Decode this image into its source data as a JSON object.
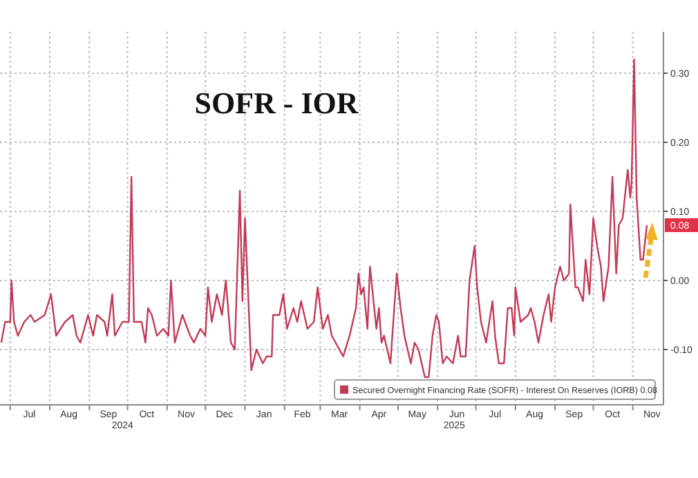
{
  "chart_data": {
    "type": "line",
    "title": "SOFR - IOR",
    "x": [
      "2024-06-24",
      "2024-06-27",
      "2024-07-01",
      "2024-07-02",
      "2024-07-04",
      "2024-07-07",
      "2024-07-12",
      "2024-07-17",
      "2024-07-20",
      "2024-07-28",
      "2024-08-02",
      "2024-08-06",
      "2024-08-13",
      "2024-08-19",
      "2024-08-22",
      "2024-08-25",
      "2024-08-31",
      "2024-09-04",
      "2024-09-07",
      "2024-09-13",
      "2024-09-15",
      "2024-09-19",
      "2024-09-21",
      "2024-09-27",
      "2024-10-02",
      "2024-10-04",
      "2024-10-06",
      "2024-10-12",
      "2024-10-15",
      "2024-10-17",
      "2024-10-20",
      "2024-10-24",
      "2024-10-29",
      "2024-11-02",
      "2024-11-04",
      "2024-11-07",
      "2024-11-13",
      "2024-11-19",
      "2024-11-22",
      "2024-11-27",
      "2024-12-01",
      "2024-12-03",
      "2024-12-06",
      "2024-12-10",
      "2024-12-14",
      "2024-12-17",
      "2024-12-21",
      "2024-12-24",
      "2024-12-28",
      "2024-12-30",
      "2025-01-01",
      "2025-01-06",
      "2025-01-10",
      "2025-01-15",
      "2025-01-18",
      "2025-01-22",
      "2025-01-23",
      "2025-01-28",
      "2025-01-31",
      "2025-02-03",
      "2025-02-08",
      "2025-02-11",
      "2025-02-14",
      "2025-02-19",
      "2025-02-24",
      "2025-02-27",
      "2025-03-03",
      "2025-03-07",
      "2025-03-10",
      "2025-03-16",
      "2025-03-19",
      "2025-03-24",
      "2025-03-29",
      "2025-03-31",
      "2025-04-02",
      "2025-04-04",
      "2025-04-07",
      "2025-04-09",
      "2025-04-14",
      "2025-04-16",
      "2025-04-18",
      "2025-04-20",
      "2025-04-25",
      "2025-04-28",
      "2025-04-30",
      "2025-05-03",
      "2025-05-06",
      "2025-05-11",
      "2025-05-14",
      "2025-05-17",
      "2025-05-22",
      "2025-05-25",
      "2025-05-28",
      "2025-05-31",
      "2025-06-02",
      "2025-06-05",
      "2025-06-08",
      "2025-06-13",
      "2025-06-17",
      "2025-06-19",
      "2025-06-23",
      "2025-06-26",
      "2025-06-30",
      "2025-07-02",
      "2025-07-05",
      "2025-07-09",
      "2025-07-14",
      "2025-07-16",
      "2025-07-19",
      "2025-07-23",
      "2025-07-26",
      "2025-07-29",
      "2025-07-31",
      "2025-08-01",
      "2025-08-05",
      "2025-08-11",
      "2025-08-13",
      "2025-08-16",
      "2025-08-19",
      "2025-08-23",
      "2025-08-27",
      "2025-08-29",
      "2025-09-01",
      "2025-09-05",
      "2025-09-08",
      "2025-09-12",
      "2025-09-13",
      "2025-09-17",
      "2025-09-19",
      "2025-09-23",
      "2025-09-25",
      "2025-09-28",
      "2025-10-01",
      "2025-10-04",
      "2025-10-07",
      "2025-10-09",
      "2025-10-13",
      "2025-10-16",
      "2025-10-19",
      "2025-10-21",
      "2025-10-24",
      "2025-10-28",
      "2025-10-30",
      "2025-10-31",
      "2025-11-02",
      "2025-11-04",
      "2025-11-07",
      "2025-11-09",
      "2025-11-12"
    ],
    "series": [
      {
        "name": "Secured Overnight Financing Rate (SOFR) - Interest On Reserves (IORB)",
        "color": "#c23a55",
        "values": [
          -0.09,
          -0.06,
          -0.06,
          0.0,
          -0.06,
          -0.08,
          -0.06,
          -0.05,
          -0.06,
          -0.05,
          -0.02,
          -0.08,
          -0.06,
          -0.05,
          -0.08,
          -0.09,
          -0.05,
          -0.08,
          -0.05,
          -0.06,
          -0.08,
          -0.02,
          -0.08,
          -0.06,
          -0.06,
          0.15,
          -0.06,
          -0.06,
          -0.09,
          -0.04,
          -0.05,
          -0.08,
          -0.07,
          -0.08,
          0.0,
          -0.09,
          -0.05,
          -0.08,
          -0.09,
          -0.07,
          -0.08,
          -0.01,
          -0.06,
          -0.02,
          -0.05,
          0.0,
          -0.09,
          -0.1,
          0.13,
          -0.03,
          0.09,
          -0.13,
          -0.1,
          -0.12,
          -0.11,
          -0.11,
          -0.05,
          -0.05,
          -0.02,
          -0.07,
          -0.04,
          -0.06,
          -0.03,
          -0.07,
          -0.06,
          -0.01,
          -0.07,
          -0.05,
          -0.08,
          -0.1,
          -0.11,
          -0.08,
          -0.04,
          0.01,
          -0.02,
          -0.01,
          -0.07,
          0.02,
          -0.07,
          -0.04,
          -0.09,
          -0.08,
          -0.12,
          -0.04,
          0.01,
          -0.04,
          -0.08,
          -0.12,
          -0.09,
          -0.1,
          -0.14,
          -0.14,
          -0.08,
          -0.05,
          -0.06,
          -0.12,
          -0.11,
          -0.12,
          -0.08,
          -0.11,
          -0.11,
          0.0,
          0.05,
          -0.01,
          -0.06,
          -0.09,
          -0.03,
          -0.08,
          -0.12,
          -0.12,
          -0.04,
          -0.04,
          -0.08,
          -0.01,
          -0.06,
          -0.05,
          -0.04,
          -0.06,
          -0.09,
          -0.05,
          -0.02,
          -0.06,
          -0.01,
          0.02,
          0.0,
          0.01,
          0.11,
          -0.01,
          -0.01,
          -0.03,
          0.03,
          -0.02,
          0.09,
          0.05,
          0.02,
          -0.03,
          0.02,
          0.15,
          0.01,
          0.08,
          0.09,
          0.16,
          0.12,
          0.14,
          0.32,
          0.12,
          0.03,
          0.03,
          0.08
        ]
      }
    ],
    "xlim": [
      "2024-06-23",
      "2025-11-25"
    ],
    "xticks": [
      {
        "value": "2024-07-01",
        "label": null
      },
      {
        "value": "2024-07-16",
        "label": "Jul"
      },
      {
        "value": "2024-08-01",
        "label": null
      },
      {
        "value": "2024-08-16",
        "label": "Aug"
      },
      {
        "value": "2024-09-01",
        "label": null
      },
      {
        "value": "2024-09-16",
        "label": "Sep"
      },
      {
        "value": "2024-10-01",
        "label": null
      },
      {
        "value": "2024-10-16",
        "label": "Oct"
      },
      {
        "value": "2024-11-01",
        "label": null
      },
      {
        "value": "2024-11-16",
        "label": "Nov"
      },
      {
        "value": "2024-12-01",
        "label": null
      },
      {
        "value": "2024-12-16",
        "label": "Dec"
      },
      {
        "value": "2025-01-01",
        "label": null
      },
      {
        "value": "2025-01-16",
        "label": "Jan"
      },
      {
        "value": "2025-02-01",
        "label": null
      },
      {
        "value": "2025-02-15",
        "label": "Feb"
      },
      {
        "value": "2025-03-01",
        "label": null
      },
      {
        "value": "2025-03-16",
        "label": "Mar"
      },
      {
        "value": "2025-04-01",
        "label": null
      },
      {
        "value": "2025-04-16",
        "label": "Apr"
      },
      {
        "value": "2025-05-01",
        "label": null
      },
      {
        "value": "2025-05-16",
        "label": "May"
      },
      {
        "value": "2025-06-01",
        "label": null
      },
      {
        "value": "2025-06-16",
        "label": "Jun"
      },
      {
        "value": "2025-07-01",
        "label": null
      },
      {
        "value": "2025-07-16",
        "label": "Jul"
      },
      {
        "value": "2025-08-01",
        "label": null
      },
      {
        "value": "2025-08-16",
        "label": "Aug"
      },
      {
        "value": "2025-09-01",
        "label": null
      },
      {
        "value": "2025-09-16",
        "label": "Sep"
      },
      {
        "value": "2025-10-01",
        "label": null
      },
      {
        "value": "2025-10-16",
        "label": "Oct"
      },
      {
        "value": "2025-11-01",
        "label": null
      },
      {
        "value": "2025-11-16",
        "label": "Nov"
      }
    ],
    "ylim": [
      -0.18,
      0.36
    ],
    "yticks": [
      {
        "value": -0.1,
        "label": "-0.10"
      },
      {
        "value": 0,
        "label": "0.00"
      },
      {
        "value": 0.1,
        "label": "0.10"
      },
      {
        "value": 0.2,
        "label": "0.20"
      },
      {
        "value": 0.3,
        "label": "0.30"
      }
    ],
    "annotations": [
      "2024",
      "2025",
      {
        "text": "0.08",
        "x": "2025-11-12",
        "y": 0.08
      }
    ],
    "grid": true,
    "legend": "bottom right",
    "line_style": "solid",
    "marker": "none"
  }
}
